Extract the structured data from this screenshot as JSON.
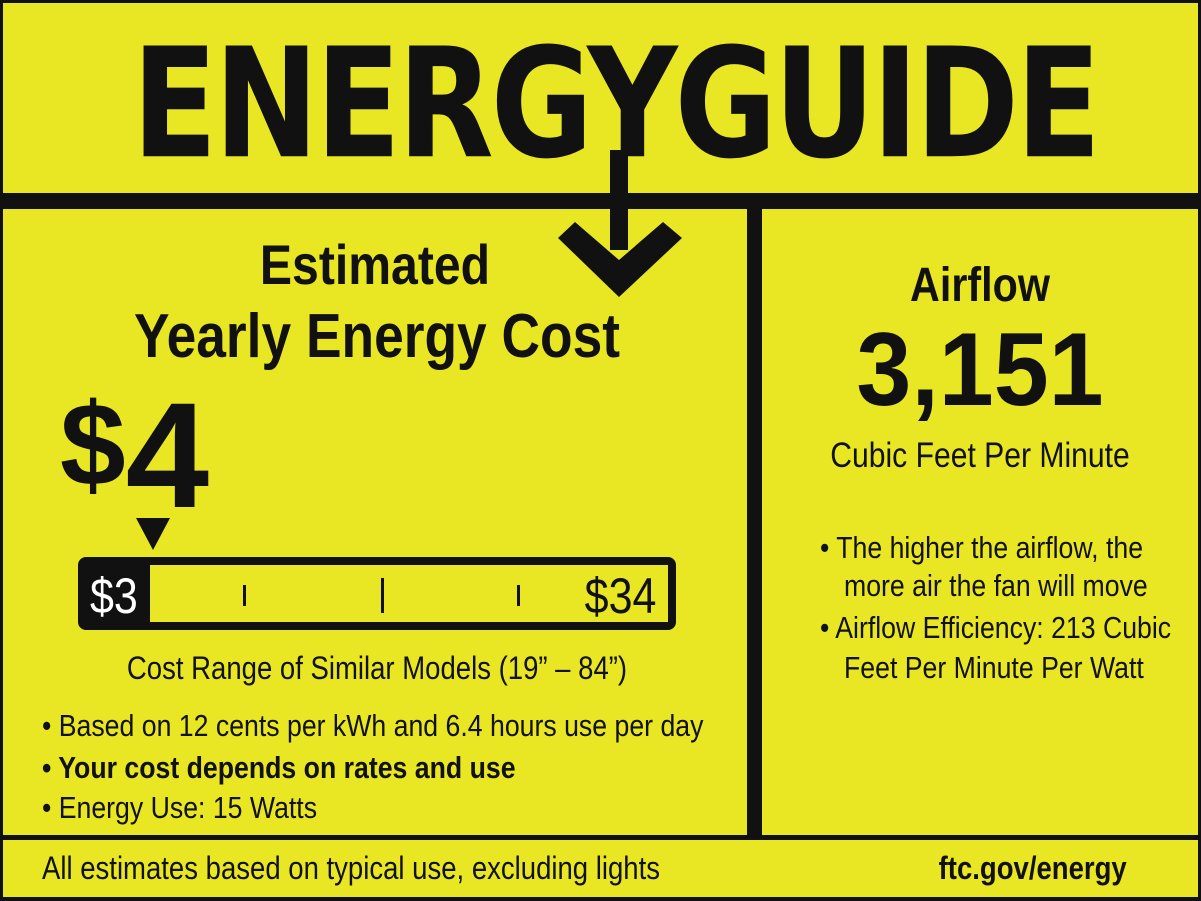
{
  "header": {
    "logo_text": "ENERGYGUIDE"
  },
  "cost": {
    "heading_line1": "Estimated",
    "heading_line2": "Yearly Energy Cost",
    "currency": "$",
    "value": "4",
    "range": {
      "min_label": "$3",
      "max_label": "$34",
      "min": 3,
      "max": 34,
      "marker_value": 4
    },
    "range_caption": "Cost Range of Similar Models (19” – 84”)",
    "bullets": [
      {
        "text": "• Based on 12 cents per kWh and 6.4 hours use per day",
        "bold": false
      },
      {
        "text": "• Your cost depends on rates and use",
        "bold": true
      },
      {
        "text": "• Energy Use:  15 Watts",
        "bold": false
      }
    ]
  },
  "airflow": {
    "heading": "Airflow",
    "value": "3,151",
    "unit": "Cubic Feet Per Minute",
    "bullets": [
      "• The higher the airflow, the",
      "more air the fan will move",
      "• Airflow Efficiency: 213 Cubic",
      "Feet Per Minute Per Watt"
    ]
  },
  "footer": {
    "note": "All estimates based on typical use, excluding lights",
    "link": "ftc.gov/energy"
  },
  "colors": {
    "background": "#e9e623",
    "ink": "#111111"
  }
}
